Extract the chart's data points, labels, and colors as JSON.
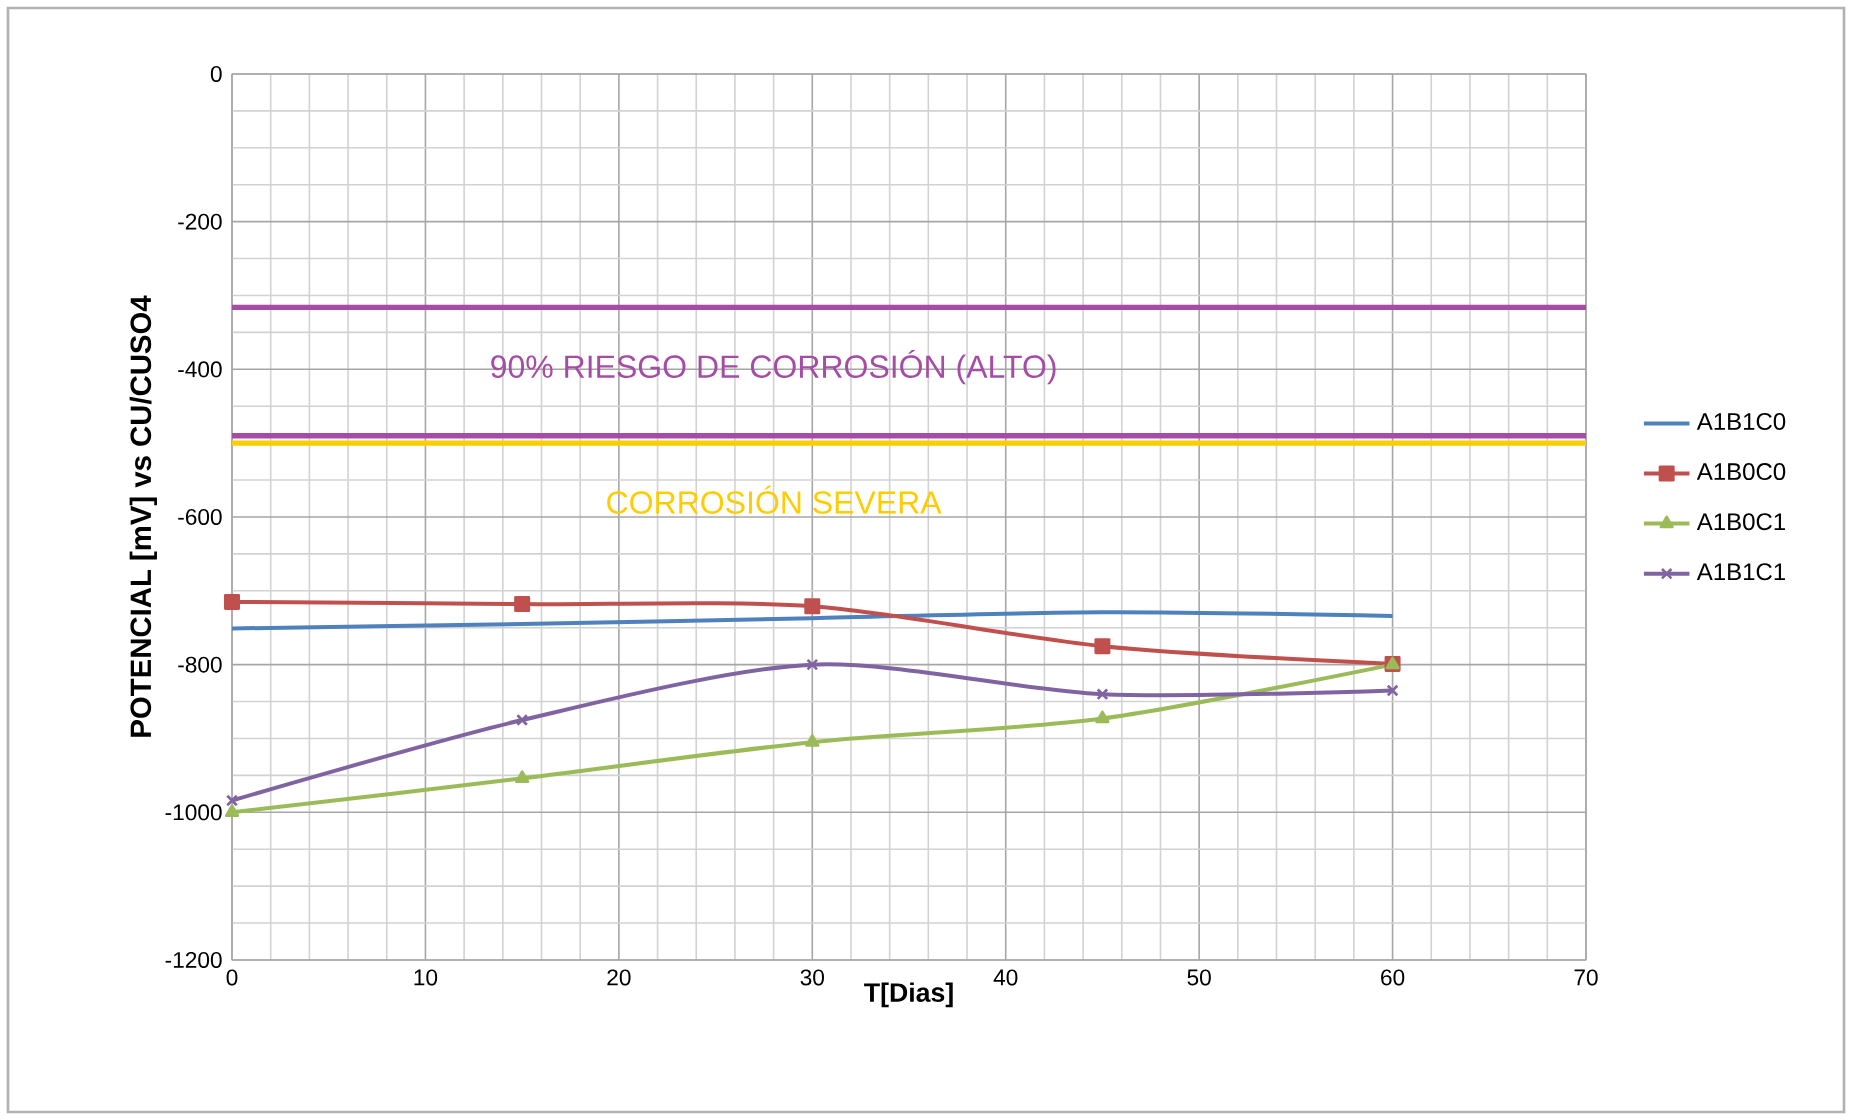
{
  "chart_data": {
    "type": "line",
    "xlabel": "T[Dias]",
    "ylabel": "POTENCIAL [mV] vs CU/CUSO4",
    "x": [
      0,
      15,
      30,
      45,
      60
    ],
    "series": [
      {
        "name": "A1B1C0",
        "color": "#4f81bd",
        "marker": "none",
        "values": [
          -751,
          -745,
          -737,
          -729,
          -734
        ]
      },
      {
        "name": "A1B0C0",
        "color": "#c0504d",
        "marker": "square",
        "values": [
          -715,
          -718,
          -721,
          -775,
          -799
        ]
      },
      {
        "name": "A1B0C1",
        "color": "#9bbb59",
        "marker": "triangle",
        "values": [
          -1000,
          -954,
          -905,
          -873,
          -800
        ]
      },
      {
        "name": "A1B1C1",
        "color": "#8064a2",
        "marker": "cross",
        "values": [
          -984,
          -875,
          -800,
          -840,
          -835
        ]
      }
    ],
    "xlim": [
      0,
      70
    ],
    "xticks": [
      0,
      10,
      20,
      30,
      40,
      50,
      60,
      70
    ],
    "ylim": [
      -1200,
      0
    ],
    "yticks": [
      -1200,
      -1000,
      -800,
      -600,
      -400,
      -200,
      0
    ],
    "ref_lines": [
      {
        "axis": "y",
        "value": -316,
        "label": "90% RIESGO DE CORROSIÓN (ALTO)",
        "color": "#a64ca6"
      },
      {
        "axis": "y",
        "value": -490,
        "color": "#a64ca6"
      },
      {
        "axis": "y",
        "value": -500,
        "label": "CORROSIÓN SEVERA",
        "color": "#ffcc00"
      }
    ],
    "grid": true,
    "legend": "right"
  }
}
